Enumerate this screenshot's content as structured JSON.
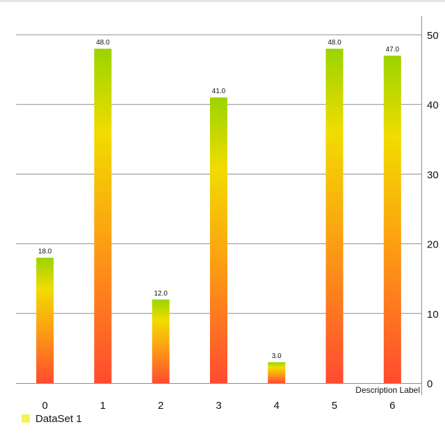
{
  "chart_data": {
    "type": "bar",
    "categories": [
      "0",
      "1",
      "2",
      "3",
      "4",
      "5",
      "6"
    ],
    "series": [
      {
        "name": "DataSet 1",
        "values": [
          18.0,
          48.0,
          12.0,
          41.0,
          3.0,
          48.0,
          47.0
        ]
      }
    ],
    "value_labels": [
      "18.0",
      "48.0",
      "12.0",
      "41.0",
      "3.0",
      "48.0",
      "47.0"
    ],
    "y_ticks": [
      "0",
      "10",
      "20",
      "30",
      "40",
      "50"
    ],
    "ylim": [
      0,
      50
    ],
    "y_axis_side": "right",
    "grid": true,
    "legend_position": "bottom-left",
    "description": "Description Label",
    "colors": {
      "bar_top": "#9ad400",
      "bar_mid": "#f1dc00",
      "bar_low": "#fca411",
      "bar_bottom": "#ff4b30",
      "legend_swatch": "#f3f35a"
    }
  }
}
